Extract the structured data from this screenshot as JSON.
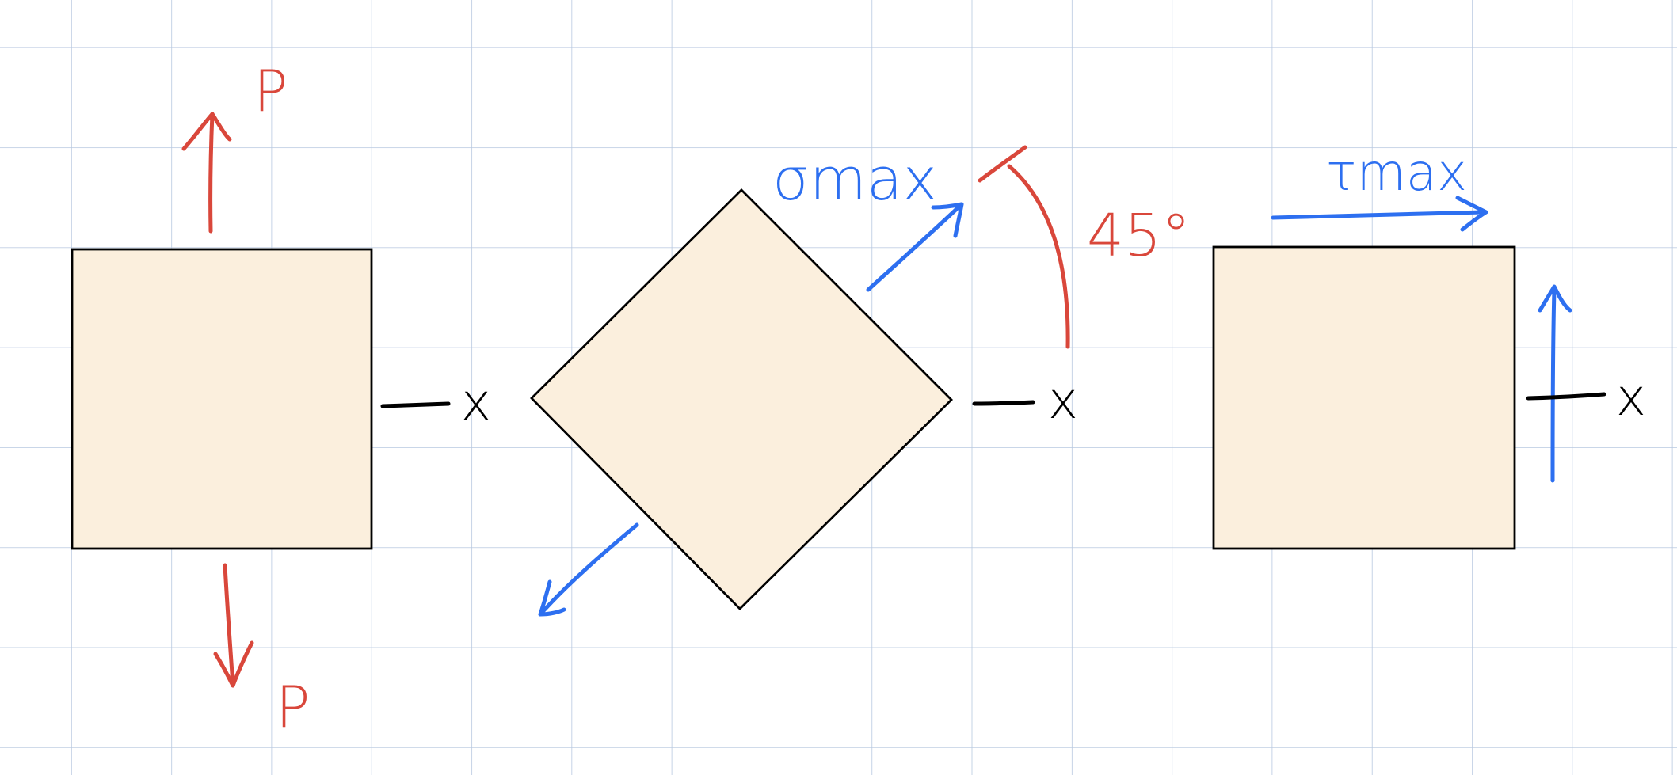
{
  "colors": {
    "background": "#ffffff",
    "grid": "#b7c8e0",
    "element_fill": "#fbefdd",
    "element_stroke": "#000000",
    "load_red": "#d9473b",
    "stress_blue": "#2d6ff0",
    "axis_black": "#000000"
  },
  "diagram": {
    "panel_uniaxial": {
      "load_top_label": "P",
      "load_bottom_label": "P",
      "axis_label": "x"
    },
    "panel_rotated": {
      "normal_stress_label": "σmax",
      "angle_label": "45°",
      "axis_label": "x"
    },
    "panel_shear": {
      "shear_stress_label": "τmax",
      "axis_label": "x"
    }
  }
}
